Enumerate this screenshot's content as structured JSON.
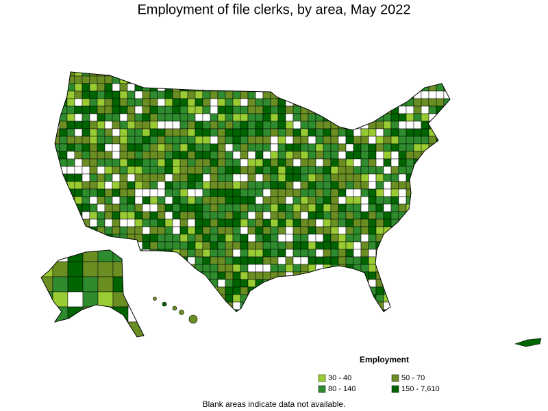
{
  "title": "Employment of file clerks, by area, May 2022",
  "legend": {
    "title": "Employment",
    "items": [
      {
        "label": "30 - 40",
        "color": "#99cc33"
      },
      {
        "label": "50 - 70",
        "color": "#6b8e23"
      },
      {
        "label": "80 - 140",
        "color": "#2e8b2e"
      },
      {
        "label": "150 - 7,610",
        "color": "#006400"
      }
    ]
  },
  "footnote": "Blank areas indicate data not available."
}
